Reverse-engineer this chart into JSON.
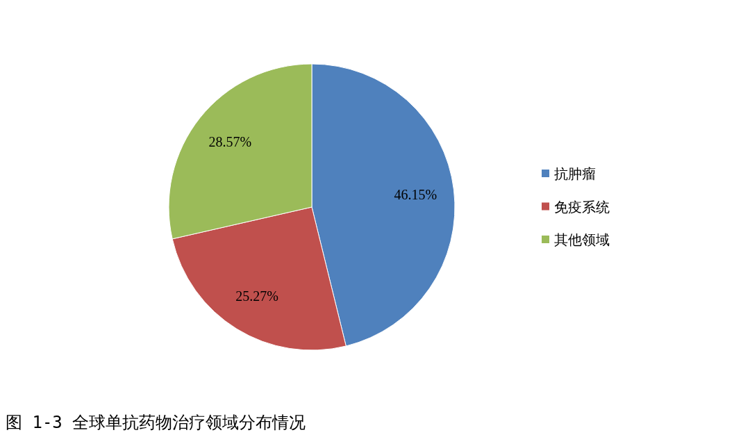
{
  "chart_data": {
    "type": "pie",
    "title": "图 1-3 全球单抗药物治疗领域分布情况",
    "categories": [
      "抗肿瘤",
      "免疫系统",
      "其他领域"
    ],
    "values": [
      46.15,
      25.27,
      28.57
    ],
    "colors": [
      "#4f81bd",
      "#c0504d",
      "#9bbb59"
    ],
    "value_labels": [
      "46.15%",
      "25.27%",
      "28.57%"
    ],
    "legend": "right"
  }
}
